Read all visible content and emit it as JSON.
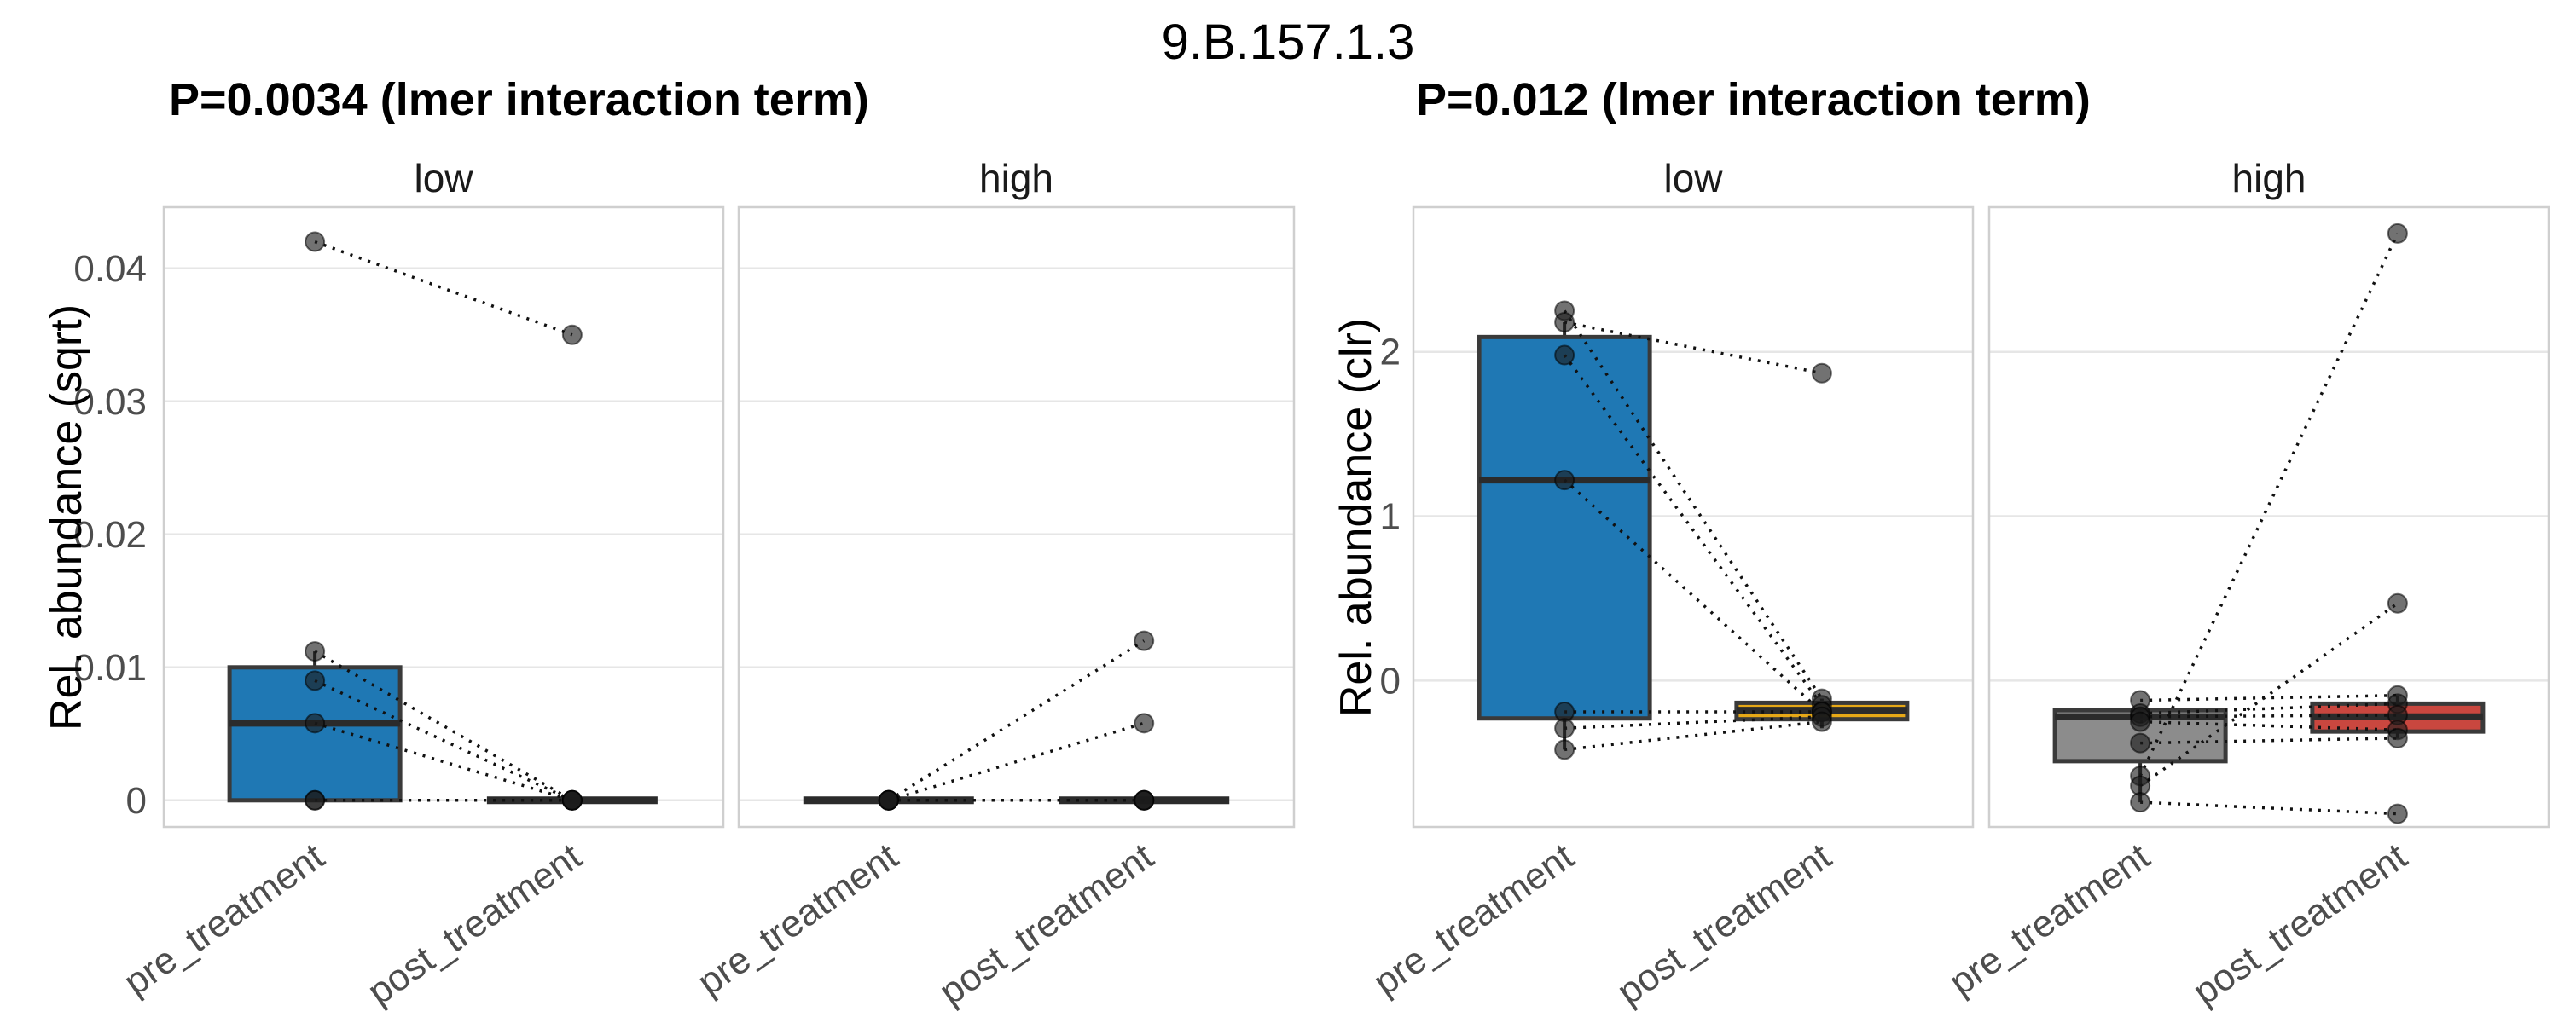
{
  "figure_title": "9.B.157.1.3",
  "colors": {
    "box_blue": "#1F78B4",
    "box_gold": "#E6A817",
    "box_gray": "#8C8C8C",
    "box_red": "#C9473F",
    "box_border": "#3A3A3A",
    "median_line": "#2B2B2B",
    "point": "#1B1B1B",
    "pair_line": "#111111",
    "gridline": "#E6E6E6",
    "panel_border": "#CFCFCF",
    "tick_text": "#4D4D4D",
    "facet_text": "#1A1A1A"
  },
  "chart_data": [
    {
      "type": "boxplot-paired",
      "title": "P=0.0034 (lmer interaction term)",
      "ylabel": "Rel. abundance (sqrt)",
      "x_categories": [
        "pre_treatment",
        "post_treatment"
      ],
      "ylim": [
        -0.002,
        0.0446
      ],
      "grid": "horizontal-major",
      "yticks": [
        {
          "value": 0,
          "label": "0"
        },
        {
          "value": 0.01,
          "label": "0.01"
        },
        {
          "value": 0.02,
          "label": "0.02"
        },
        {
          "value": 0.03,
          "label": "0.03"
        },
        {
          "value": 0.04,
          "label": "0.04"
        }
      ],
      "facets": [
        {
          "label": "low",
          "boxes": [
            {
              "group": "pre_treatment",
              "fill": "#1F78B4",
              "q1": 0,
              "median": 0.0058,
              "q3": 0.01,
              "whisker_low": 0,
              "whisker_high": 0.0112,
              "collapsed": false
            },
            {
              "group": "post_treatment",
              "fill": "#1F78B4",
              "q1": 0,
              "median": 0,
              "q3": 0,
              "whisker_low": 0,
              "whisker_high": 0,
              "collapsed": true
            }
          ],
          "pairs": [
            [
              0.042,
              0.035
            ],
            [
              0.0112,
              0
            ],
            [
              0.009,
              0
            ],
            [
              0.0058,
              0
            ],
            [
              0,
              0
            ],
            [
              0,
              0
            ]
          ]
        },
        {
          "label": "high",
          "boxes": [
            {
              "group": "pre_treatment",
              "fill": "#1F78B4",
              "q1": 0,
              "median": 0,
              "q3": 0,
              "whisker_low": 0,
              "whisker_high": 0,
              "collapsed": true
            },
            {
              "group": "post_treatment",
              "fill": "#1F78B4",
              "q1": 0,
              "median": 0,
              "q3": 0,
              "whisker_low": 0,
              "whisker_high": 0,
              "collapsed": true
            }
          ],
          "pairs": [
            [
              0,
              0.012
            ],
            [
              0,
              0.0058
            ],
            [
              0,
              0
            ],
            [
              0,
              0
            ],
            [
              0,
              0
            ],
            [
              0,
              0
            ]
          ]
        }
      ]
    },
    {
      "type": "boxplot-paired",
      "title": "P=0.012 (lmer interaction term)",
      "ylabel": "Rel. abundance (clr)",
      "x_categories": [
        "pre_treatment",
        "post_treatment"
      ],
      "ylim": [
        -0.89,
        2.88
      ],
      "grid": "horizontal-major",
      "yticks": [
        {
          "value": 0,
          "label": "0"
        },
        {
          "value": 1,
          "label": "1"
        },
        {
          "value": 2,
          "label": "2"
        }
      ],
      "facets": [
        {
          "label": "low",
          "boxes": [
            {
              "group": "pre_treatment",
              "fill": "#1F78B4",
              "q1": -0.23,
              "median": 1.22,
              "q3": 2.09,
              "whisker_low": -0.42,
              "whisker_high": 2.18,
              "collapsed": false
            },
            {
              "group": "post_treatment",
              "fill": "#E6A817",
              "q1": -0.235,
              "median": -0.18,
              "q3": -0.135,
              "whisker_low": -0.29,
              "whisker_high": -0.11,
              "collapsed": false
            }
          ],
          "pairs": [
            [
              2.25,
              -0.11
            ],
            [
              2.18,
              1.87
            ],
            [
              1.98,
              -0.15
            ],
            [
              1.22,
              -0.19
            ],
            [
              -0.19,
              -0.19
            ],
            [
              -0.29,
              -0.22
            ],
            [
              -0.42,
              -0.25
            ]
          ]
        },
        {
          "label": "high",
          "boxes": [
            {
              "group": "pre_treatment",
              "fill": "#8C8C8C",
              "q1": -0.49,
              "median": -0.22,
              "q3": -0.18,
              "whisker_low": -0.74,
              "whisker_high": -0.18,
              "collapsed": false
            },
            {
              "group": "post_treatment",
              "fill": "#C9473F",
              "q1": -0.31,
              "median": -0.22,
              "q3": -0.14,
              "whisker_low": -0.35,
              "whisker_high": -0.09,
              "collapsed": false
            }
          ],
          "pairs": [
            [
              -0.12,
              -0.09
            ],
            [
              -0.2,
              -0.14
            ],
            [
              -0.22,
              -0.21
            ],
            [
              -0.25,
              -0.3
            ],
            [
              -0.38,
              -0.35
            ],
            [
              -0.58,
              2.72
            ],
            [
              -0.64,
              0.47
            ],
            [
              -0.74,
              -0.81
            ]
          ]
        }
      ]
    }
  ]
}
